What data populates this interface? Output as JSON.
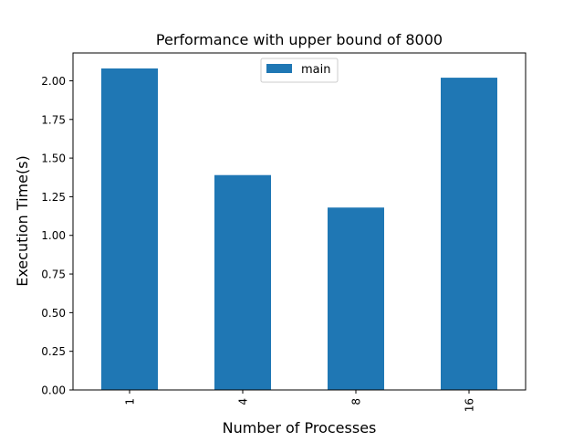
{
  "chart_data": {
    "type": "bar",
    "title": "Performance with upper bound of 8000",
    "xlabel": "Number of Processes",
    "ylabel": "Execution Time(s)",
    "categories": [
      "1",
      "4",
      "8",
      "16"
    ],
    "series": [
      {
        "name": "main",
        "color": "#1f77b4",
        "values": [
          2.08,
          1.39,
          1.18,
          2.02
        ]
      }
    ],
    "ylim": [
      0,
      2.18
    ],
    "yticks": [
      "0.00",
      "0.25",
      "0.50",
      "0.75",
      "1.00",
      "1.25",
      "1.50",
      "1.75",
      "2.00"
    ],
    "ytick_values": [
      0,
      0.25,
      0.5,
      0.75,
      1.0,
      1.25,
      1.5,
      1.75,
      2.0
    ],
    "xtick_rotation": "vertical",
    "legend_position": "top-center",
    "grid": false
  }
}
